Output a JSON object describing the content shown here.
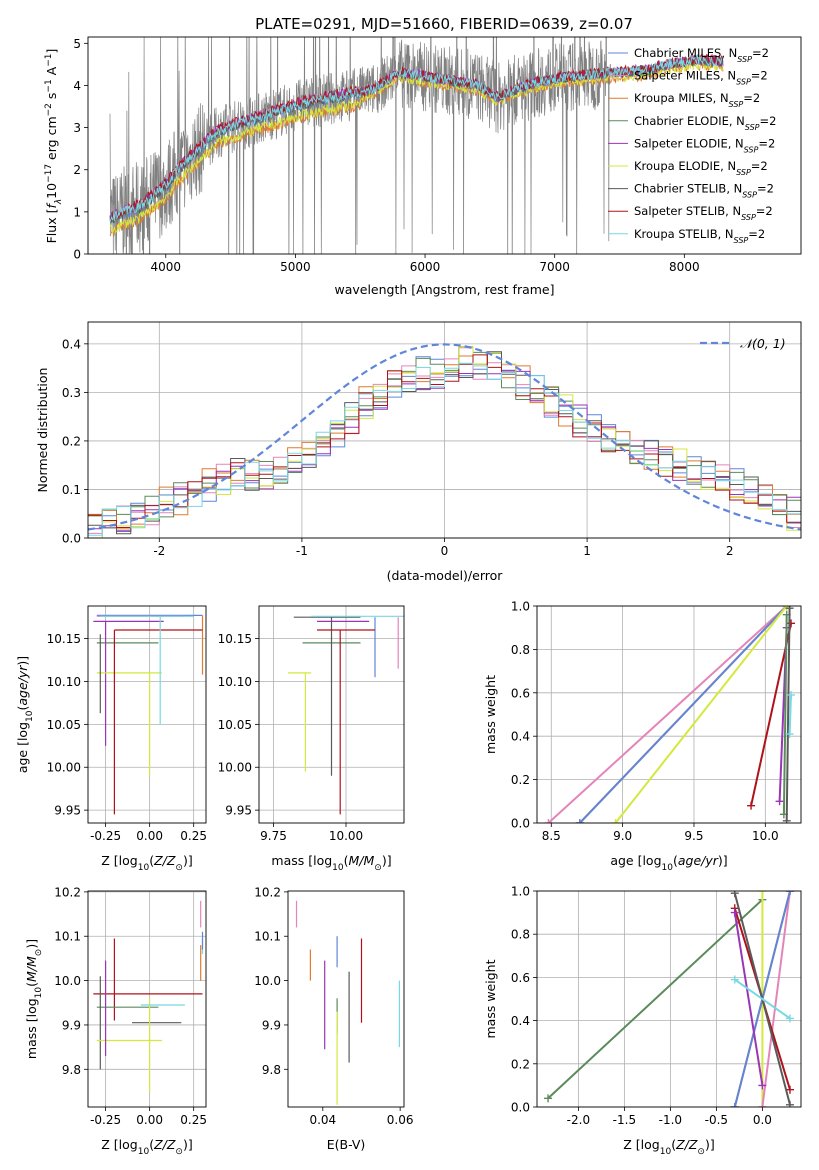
{
  "figure": {
    "title": "PLATE=0291, MJD=51660, FIBERID=0639, z=0.07"
  },
  "colors": {
    "chabrier_miles": "#5f86d9",
    "salpeter_miles": "#e485b9",
    "kroupa_miles": "#e07a2d",
    "chabrier_elodie": "#5b8a5b",
    "salpeter_elodie": "#9a35b5",
    "kroupa_elodie": "#d4e83e",
    "chabrier_stelib": "#5a5a5a",
    "salpeter_stelib": "#b0121b",
    "kroupa_stelib": "#78d8e3",
    "data": "#808080",
    "normal": "#5f86d9"
  },
  "chart_data": [
    {
      "id": "spectrum",
      "type": "line",
      "xlabel": "wavelength [Angstrom, rest frame]",
      "ylabel_parts": [
        "Flux [",
        "f",
        "λ",
        "10",
        "−17",
        " erg cm",
        "−2",
        " s",
        "−1",
        " A",
        "−1",
        "]"
      ],
      "xlim": [
        3400,
        8900
      ],
      "ylim": [
        0,
        5.15
      ],
      "xticks": [
        4000,
        5000,
        6000,
        7000,
        8000
      ],
      "yticks": [
        0,
        1,
        2,
        3,
        4,
        5
      ],
      "grid": false,
      "legend_position": "right",
      "legend": [
        {
          "key": "chabrier_miles",
          "label": "Chabrier MILES, N",
          "sub": "SSP",
          "suffix": "=2"
        },
        {
          "key": "salpeter_miles",
          "label": "Salpeter MILES, N",
          "sub": "SSP",
          "suffix": "=2"
        },
        {
          "key": "kroupa_miles",
          "label": "Kroupa MILES, N",
          "sub": "SSP",
          "suffix": "=2"
        },
        {
          "key": "chabrier_elodie",
          "label": "Chabrier ELODIE, N",
          "sub": "SSP",
          "suffix": "=2"
        },
        {
          "key": "salpeter_elodie",
          "label": "Salpeter ELODIE, N",
          "sub": "SSP",
          "suffix": "=2"
        },
        {
          "key": "kroupa_elodie",
          "label": "Kroupa ELODIE, N",
          "sub": "SSP",
          "suffix": "=2"
        },
        {
          "key": "chabrier_stelib",
          "label": "Chabrier STELIB, N",
          "sub": "SSP",
          "suffix": "=2"
        },
        {
          "key": "salpeter_stelib",
          "label": "Salpeter STELIB, N",
          "sub": "SSP",
          "suffix": "=2"
        },
        {
          "key": "kroupa_stelib",
          "label": "Kroupa STELIB, N",
          "sub": "SSP",
          "suffix": "=2"
        }
      ],
      "model_continuum": {
        "x": [
          3570,
          3700,
          3800,
          3900,
          4000,
          4100,
          4200,
          4300,
          4400,
          4600,
          4800,
          5000,
          5200,
          5400,
          5600,
          5700,
          5800,
          5900,
          6000,
          6200,
          6400,
          6560,
          6700,
          6900,
          7100,
          7300,
          7400,
          7500,
          7700,
          7900,
          8100,
          8300
        ],
        "y": [
          0.8,
          1.0,
          1.1,
          1.35,
          1.6,
          2.0,
          2.3,
          2.6,
          2.9,
          3.1,
          3.3,
          3.5,
          3.65,
          3.75,
          3.9,
          4.1,
          4.3,
          4.25,
          4.2,
          4.1,
          4.0,
          3.7,
          3.9,
          4.1,
          4.2,
          4.25,
          4.3,
          4.3,
          4.35,
          4.5,
          4.6,
          4.55
        ]
      }
    },
    {
      "id": "residuals",
      "type": "line",
      "xlabel": "(data-model)/error",
      "ylabel": "Normed distribution",
      "xlim": [
        -2.5,
        2.5
      ],
      "ylim": [
        0,
        0.445
      ],
      "xticks": [
        -2,
        -1,
        0,
        1,
        2
      ],
      "yticks": [
        0.0,
        0.1,
        0.2,
        0.3,
        0.4
      ],
      "grid": true,
      "legend_position": "top-right",
      "normal_label": "𝒩(0, 1)",
      "hist_bins": 50,
      "hist_shape": [
        0.02,
        0.03,
        0.04,
        0.05,
        0.06,
        0.07,
        0.08,
        0.1,
        0.11,
        0.12,
        0.13,
        0.13,
        0.13,
        0.14,
        0.16,
        0.18,
        0.2,
        0.22,
        0.25,
        0.28,
        0.3,
        0.32,
        0.33,
        0.34,
        0.34,
        0.35,
        0.36,
        0.36,
        0.35,
        0.34,
        0.32,
        0.3,
        0.28,
        0.26,
        0.24,
        0.22,
        0.21,
        0.19,
        0.18,
        0.17,
        0.16,
        0.15,
        0.14,
        0.13,
        0.12,
        0.11,
        0.1,
        0.08,
        0.06,
        0.05
      ]
    },
    {
      "id": "age-vs-Z",
      "type": "scatter",
      "xlabel": "Z [log10(Z/Z⊙)]",
      "ylabel": "age  [log10(age/yr)]",
      "xlim": [
        -0.35,
        0.32
      ],
      "ylim": [
        9.935,
        10.188
      ],
      "xticks": [
        -0.25,
        0.0,
        0.25
      ],
      "yticks": [
        9.95,
        10.0,
        10.05,
        10.1,
        10.15
      ],
      "grid": true,
      "lines": [
        {
          "key": "chabrier_miles",
          "x": [
            -0.3,
            0.3
          ],
          "y": [
            10.177,
            10.177
          ]
        },
        {
          "key": "salpeter_miles",
          "x": [
            -0.3,
            0.2
          ],
          "y": [
            10.176,
            10.176
          ]
        },
        {
          "key": "kroupa_miles",
          "x": [
            0.3,
            0.3
          ],
          "y": [
            10.108,
            10.177
          ]
        },
        {
          "key": "chabrier_elodie",
          "x": [
            -0.3,
            0.05
          ],
          "y": [
            10.145,
            10.145
          ]
        },
        {
          "key": "salpeter_elodie",
          "x": [
            -0.32,
            0.08
          ],
          "y": [
            10.17,
            10.17
          ]
        },
        {
          "key": "salpeter_elodie",
          "x": [
            -0.25,
            -0.25
          ],
          "y": [
            10.025,
            10.17
          ]
        },
        {
          "key": "kroupa_elodie",
          "x": [
            -0.3,
            0.07
          ],
          "y": [
            10.11,
            10.11
          ]
        },
        {
          "key": "kroupa_elodie",
          "x": [
            0.0,
            0.0
          ],
          "y": [
            9.99,
            10.11
          ]
        },
        {
          "key": "chabrier_stelib",
          "x": [
            -0.28,
            -0.28
          ],
          "y": [
            10.063,
            10.155
          ]
        },
        {
          "key": "salpeter_stelib",
          "x": [
            -0.2,
            0.3
          ],
          "y": [
            10.16,
            10.16
          ]
        },
        {
          "key": "salpeter_stelib",
          "x": [
            -0.2,
            -0.2
          ],
          "y": [
            9.945,
            10.16
          ]
        },
        {
          "key": "kroupa_stelib",
          "x": [
            -0.28,
            0.25
          ],
          "y": [
            10.176,
            10.176
          ]
        },
        {
          "key": "kroupa_stelib",
          "x": [
            0.06,
            0.06
          ],
          "y": [
            10.05,
            10.176
          ]
        }
      ]
    },
    {
      "id": "age-vs-mass",
      "type": "scatter",
      "xlabel": "mass [log10(M/M⊙)]",
      "ylabel": "",
      "xlim": [
        9.7,
        10.2
      ],
      "ylim": [
        9.935,
        10.188
      ],
      "xticks": [
        9.75,
        10.0
      ],
      "yticks": [
        9.95,
        10.0,
        10.05,
        10.1,
        10.15
      ],
      "grid": true,
      "lines": [
        {
          "key": "chabrier_miles",
          "x": [
            10.1,
            10.1
          ],
          "y": [
            10.105,
            10.175
          ]
        },
        {
          "key": "salpeter_miles",
          "x": [
            10.18,
            10.18
          ],
          "y": [
            10.115,
            10.175
          ]
        },
        {
          "key": "chabrier_elodie",
          "x": [
            9.85,
            10.05
          ],
          "y": [
            10.145,
            10.145
          ]
        },
        {
          "key": "salpeter_elodie",
          "x": [
            9.9,
            10.08
          ],
          "y": [
            10.17,
            10.17
          ]
        },
        {
          "key": "kroupa_elodie",
          "x": [
            9.86,
            9.86
          ],
          "y": [
            9.995,
            10.11
          ]
        },
        {
          "key": "kroupa_elodie",
          "x": [
            9.8,
            9.88
          ],
          "y": [
            10.11,
            10.11
          ]
        },
        {
          "key": "chabrier_stelib",
          "x": [
            9.95,
            9.95
          ],
          "y": [
            9.99,
            10.175
          ]
        },
        {
          "key": "chabrier_stelib",
          "x": [
            9.82,
            10.05
          ],
          "y": [
            10.175,
            10.175
          ]
        },
        {
          "key": "salpeter_stelib",
          "x": [
            9.98,
            9.98
          ],
          "y": [
            9.945,
            10.16
          ]
        },
        {
          "key": "salpeter_stelib",
          "x": [
            9.9,
            10.1
          ],
          "y": [
            10.16,
            10.16
          ]
        },
        {
          "key": "kroupa_stelib",
          "x": [
            9.88,
            10.2
          ],
          "y": [
            10.176,
            10.176
          ]
        }
      ]
    },
    {
      "id": "weight-vs-age",
      "type": "line",
      "xlabel": "age  [log10(age/yr)]",
      "ylabel": "mass weight",
      "xlim": [
        8.4,
        10.25
      ],
      "ylim": [
        0,
        1.0
      ],
      "xticks": [
        8.5,
        9.0,
        9.5,
        10.0
      ],
      "yticks": [
        0.0,
        0.2,
        0.4,
        0.6,
        0.8,
        1.0
      ],
      "grid": true,
      "lines": [
        {
          "key": "salpeter_miles",
          "x": [
            8.48,
            10.15
          ],
          "y": [
            0.0,
            1.0
          ]
        },
        {
          "key": "kroupa_miles",
          "x": [
            8.7,
            10.15
          ],
          "y": [
            0.0,
            1.0
          ]
        },
        {
          "key": "chabrier_miles",
          "x": [
            8.7,
            10.15
          ],
          "y": [
            0.0,
            1.0
          ]
        },
        {
          "key": "kroupa_elodie",
          "x": [
            8.95,
            10.15
          ],
          "y": [
            0.0,
            1.0
          ]
        },
        {
          "key": "salpeter_stelib",
          "x": [
            9.9,
            10.18
          ],
          "y": [
            0.08,
            0.92
          ]
        },
        {
          "key": "salpeter_elodie",
          "x": [
            10.1,
            10.15
          ],
          "y": [
            0.1,
            0.9
          ]
        },
        {
          "key": "chabrier_elodie",
          "x": [
            10.13,
            10.15
          ],
          "y": [
            0.04,
            0.96
          ]
        },
        {
          "key": "chabrier_stelib",
          "x": [
            10.15,
            10.17
          ],
          "y": [
            0.01,
            0.99
          ]
        },
        {
          "key": "kroupa_stelib",
          "x": [
            10.17,
            10.18
          ],
          "y": [
            0.41,
            0.59
          ]
        }
      ]
    },
    {
      "id": "mass-vs-Z",
      "type": "scatter",
      "xlabel": "Z [log10(Z/Z⊙)]",
      "ylabel": "mass [log10(M/M⊙)]",
      "xlim": [
        -0.35,
        0.32
      ],
      "ylim": [
        9.715,
        10.202
      ],
      "xticks": [
        -0.25,
        0.0,
        0.25
      ],
      "yticks": [
        9.8,
        9.9,
        10.0,
        10.1,
        10.2
      ],
      "grid": true,
      "lines": [
        {
          "key": "salpeter_stelib",
          "x": [
            -0.32,
            0.3
          ],
          "y": [
            9.97,
            9.97
          ]
        },
        {
          "key": "salpeter_stelib",
          "x": [
            -0.2,
            -0.2
          ],
          "y": [
            9.91,
            10.095
          ]
        },
        {
          "key": "chabrier_elodie",
          "x": [
            -0.3,
            0.05
          ],
          "y": [
            9.94,
            9.94
          ]
        },
        {
          "key": "chabrier_stelib",
          "x": [
            -0.1,
            0.18
          ],
          "y": [
            9.905,
            9.905
          ]
        },
        {
          "key": "chabrier_stelib",
          "x": [
            -0.28,
            -0.28
          ],
          "y": [
            9.8,
            10.01
          ]
        },
        {
          "key": "kroupa_elodie",
          "x": [
            -0.3,
            0.07
          ],
          "y": [
            9.865,
            9.865
          ]
        },
        {
          "key": "kroupa_elodie",
          "x": [
            0.0,
            0.0
          ],
          "y": [
            9.75,
            9.96
          ]
        },
        {
          "key": "salpeter_elodie",
          "x": [
            -0.25,
            -0.25
          ],
          "y": [
            9.83,
            10.045
          ]
        },
        {
          "key": "kroupa_stelib",
          "x": [
            -0.05,
            0.2
          ],
          "y": [
            9.945,
            9.945
          ]
        },
        {
          "key": "kroupa_stelib",
          "x": [
            0.3,
            0.3
          ],
          "y": [
            10.06,
            10.1
          ]
        },
        {
          "key": "salpeter_miles",
          "x": [
            0.29,
            0.29
          ],
          "y": [
            10.12,
            10.18
          ]
        },
        {
          "key": "kroupa_miles",
          "x": [
            0.29,
            0.29
          ],
          "y": [
            10.0,
            10.08
          ]
        },
        {
          "key": "chabrier_miles",
          "x": [
            0.3,
            0.3
          ],
          "y": [
            10.07,
            10.11
          ]
        }
      ]
    },
    {
      "id": "mass-vs-EBV",
      "type": "scatter",
      "xlabel": "E(B-V)",
      "ylabel": "",
      "xlim": [
        0.031,
        0.061
      ],
      "ylim": [
        9.715,
        10.202
      ],
      "xticks": [
        0.04,
        0.06
      ],
      "yticks": [
        9.8,
        9.9,
        10.0,
        10.1,
        10.2
      ],
      "grid": false,
      "lines": [
        {
          "key": "salpeter_miles",
          "x": [
            0.0332,
            0.0332
          ],
          "y": [
            10.12,
            10.18
          ]
        },
        {
          "key": "kroupa_miles",
          "x": [
            0.0368,
            0.0368
          ],
          "y": [
            10.0,
            10.07
          ]
        },
        {
          "key": "salpeter_elodie",
          "x": [
            0.0405,
            0.0405
          ],
          "y": [
            9.845,
            10.045
          ]
        },
        {
          "key": "chabrier_miles",
          "x": [
            0.0437,
            0.0437
          ],
          "y": [
            10.03,
            10.1
          ]
        },
        {
          "key": "chabrier_elodie",
          "x": [
            0.0437,
            0.0437
          ],
          "y": [
            9.88,
            9.96
          ]
        },
        {
          "key": "kroupa_elodie",
          "x": [
            0.0437,
            0.0437
          ],
          "y": [
            9.72,
            9.93
          ]
        },
        {
          "key": "chabrier_stelib",
          "x": [
            0.0468,
            0.0468
          ],
          "y": [
            9.815,
            10.02
          ]
        },
        {
          "key": "salpeter_stelib",
          "x": [
            0.05,
            0.05
          ],
          "y": [
            9.905,
            10.095
          ]
        },
        {
          "key": "kroupa_stelib",
          "x": [
            0.0598,
            0.0598
          ],
          "y": [
            9.85,
            10.0
          ]
        }
      ]
    },
    {
      "id": "weight-vs-Z",
      "type": "line",
      "xlabel": "Z [log10(Z/Z⊙)]",
      "ylabel": "mass weight",
      "xlim": [
        -2.45,
        0.42
      ],
      "ylim": [
        0,
        1.0
      ],
      "xticks": [
        -2.0,
        -1.5,
        -1.0,
        -0.5,
        0.0
      ],
      "yticks": [
        0.0,
        0.2,
        0.4,
        0.6,
        0.8,
        1.0
      ],
      "grid": true,
      "lines": [
        {
          "key": "chabrier_elodie",
          "x": [
            -2.33,
            0.0
          ],
          "y": [
            0.04,
            0.96
          ]
        },
        {
          "key": "kroupa_elodie",
          "x": [
            0.0,
            0.0
          ],
          "y": [
            0.0,
            1.0
          ]
        },
        {
          "key": "salpeter_miles",
          "x": [
            0.0,
            0.3
          ],
          "y": [
            0.0,
            1.0
          ]
        },
        {
          "key": "kroupa_miles",
          "x": [
            -0.3,
            0.3
          ],
          "y": [
            0.0,
            1.0
          ]
        },
        {
          "key": "chabrier_miles",
          "x": [
            -0.3,
            0.3
          ],
          "y": [
            0.0,
            1.0
          ]
        },
        {
          "key": "salpeter_stelib",
          "x": [
            -0.3,
            0.3
          ],
          "y": [
            0.92,
            0.08
          ]
        },
        {
          "key": "chabrier_stelib",
          "x": [
            -0.3,
            0.3
          ],
          "y": [
            0.99,
            0.01
          ]
        },
        {
          "key": "salpeter_elodie",
          "x": [
            -0.3,
            0.0
          ],
          "y": [
            0.9,
            0.1
          ]
        },
        {
          "key": "kroupa_stelib",
          "x": [
            -0.3,
            0.3
          ],
          "y": [
            0.59,
            0.41
          ]
        }
      ]
    }
  ]
}
